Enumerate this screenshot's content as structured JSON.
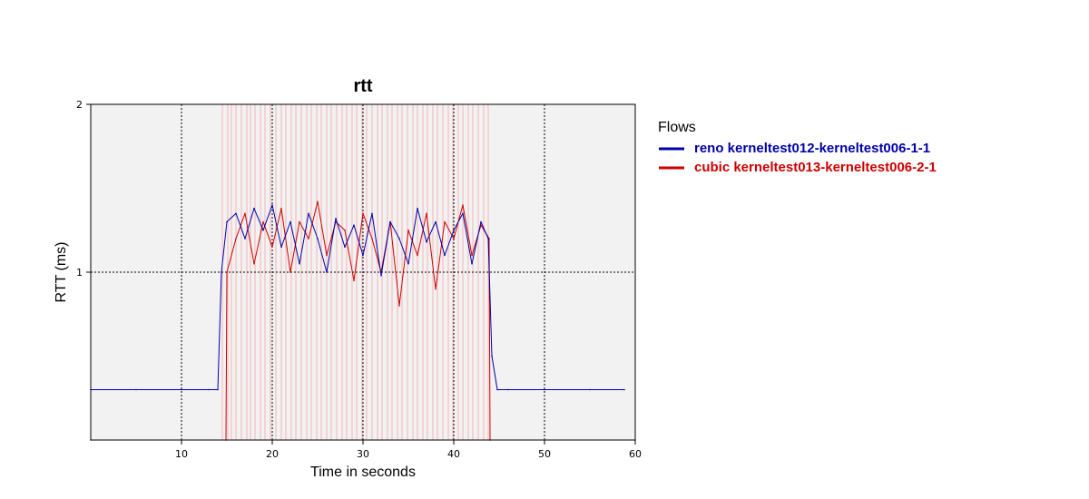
{
  "chart_data": {
    "type": "line",
    "title": "rtt",
    "xlabel": "Time in seconds",
    "ylabel": "RTT (ms)",
    "xlim": [
      0,
      60
    ],
    "ylim": [
      0,
      2
    ],
    "xticks": [
      10,
      20,
      30,
      40,
      50,
      60
    ],
    "yticks": [
      1,
      2
    ],
    "grid": true,
    "legend": {
      "title": "Flows",
      "placement": "right"
    },
    "colors": {
      "reno": "#0000aa",
      "cubic": "#cc0000",
      "loss_markers": "#f4b4b4",
      "plot_bg": "#f2f2f2"
    },
    "series": [
      {
        "name": "reno kerneltest012-kerneltest006-1-1",
        "x": [
          0.0,
          5.0,
          10.0,
          13.0,
          14.0,
          14.4,
          15.0,
          16.0,
          17.0,
          18.0,
          19.0,
          20.0,
          21.0,
          22.0,
          23.0,
          24.0,
          25.0,
          26.0,
          27.0,
          28.0,
          29.0,
          30.0,
          31.0,
          32.0,
          33.0,
          34.0,
          35.0,
          36.0,
          37.0,
          38.0,
          39.0,
          40.0,
          41.0,
          42.0,
          43.0,
          43.8,
          44.2,
          44.8,
          46.0,
          50.0,
          55.0,
          58.8
        ],
        "y": [
          0.3,
          0.3,
          0.3,
          0.3,
          0.3,
          1.0,
          1.3,
          1.35,
          1.2,
          1.38,
          1.25,
          1.4,
          1.15,
          1.3,
          1.05,
          1.35,
          1.2,
          1.0,
          1.32,
          1.15,
          1.28,
          1.1,
          1.35,
          0.98,
          1.3,
          1.2,
          1.05,
          1.38,
          1.18,
          1.3,
          1.1,
          1.25,
          1.35,
          1.05,
          1.3,
          1.2,
          0.5,
          0.3,
          0.3,
          0.3,
          0.3,
          0.3
        ]
      },
      {
        "name": "cubic kerneltest013-kerneltest006-2-1",
        "x": [
          0.0,
          10.0,
          14.9,
          15.0,
          16.0,
          17.0,
          18.0,
          19.0,
          20.0,
          21.0,
          22.0,
          23.0,
          24.0,
          25.0,
          26.0,
          27.0,
          28.0,
          29.0,
          30.0,
          31.0,
          32.0,
          33.0,
          34.0,
          35.0,
          36.0,
          37.0,
          38.0,
          39.0,
          40.0,
          41.0,
          42.0,
          43.0,
          43.9,
          44.0,
          50.0,
          60.0
        ],
        "y": [
          0.0,
          0.0,
          0.0,
          1.0,
          1.2,
          1.35,
          1.05,
          1.3,
          1.15,
          1.38,
          1.0,
          1.3,
          1.2,
          1.42,
          1.1,
          1.3,
          1.25,
          0.95,
          1.35,
          1.2,
          1.0,
          1.3,
          0.8,
          1.25,
          1.1,
          1.35,
          0.9,
          1.3,
          1.2,
          1.4,
          1.1,
          1.28,
          1.2,
          0.0,
          0.0,
          0.0
        ]
      }
    ],
    "loss_events_x": [
      14.5,
      15.1,
      15.5,
      16.0,
      16.6,
      17.2,
      17.6,
      18.1,
      18.7,
      19.2,
      19.8,
      20.4,
      21.0,
      21.5,
      22.1,
      22.6,
      23.2,
      23.8,
      24.3,
      24.9,
      25.4,
      26.0,
      26.5,
      27.1,
      27.7,
      28.2,
      28.8,
      29.3,
      29.9,
      30.4,
      31.0,
      31.6,
      32.1,
      32.7,
      33.2,
      33.8,
      34.3,
      34.9,
      35.5,
      36.0,
      36.6,
      37.1,
      37.7,
      38.2,
      38.8,
      39.4,
      39.9,
      40.5,
      41.0,
      41.6,
      42.1,
      42.7,
      43.3,
      43.8
    ]
  }
}
